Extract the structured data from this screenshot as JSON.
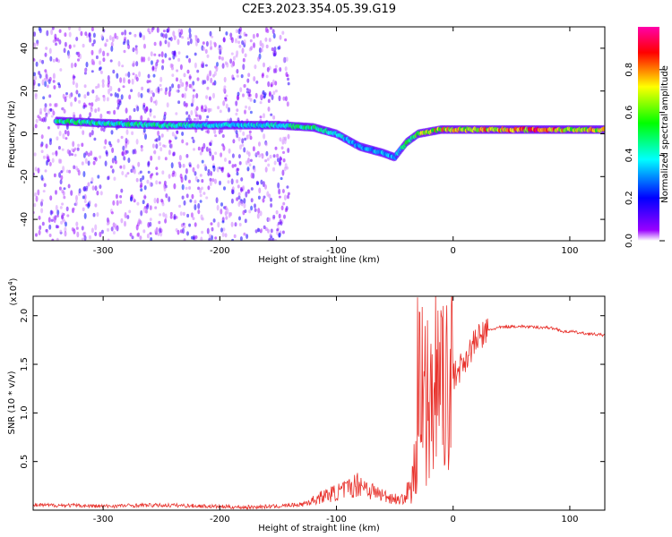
{
  "title": "C2E3.2023.354.05.39.G19",
  "chart_data": [
    {
      "type": "heatmap",
      "xlabel": "Height of straight line (km)",
      "ylabel": "Frequency (Hz)",
      "xlim": [
        -360,
        130
      ],
      "ylim": [
        -50,
        50
      ],
      "x_ticks": [
        -300,
        -200,
        -100,
        0,
        100
      ],
      "x_tick_labels": [
        "-300",
        "-200",
        "-100",
        "0",
        "100"
      ],
      "y_ticks": [
        -40,
        -20,
        0,
        20,
        40
      ],
      "y_tick_labels": [
        "-40",
        "-20",
        "0",
        "20",
        "40"
      ],
      "grid": false,
      "colorbar": {
        "label": "Normalized spectral amplitude",
        "range": [
          0,
          1
        ],
        "ticks": [
          0.0,
          0.2,
          0.4,
          0.6,
          0.8
        ],
        "tick_labels": [
          "0.0",
          "0.2",
          "0.4",
          "0.6",
          "0.8"
        ],
        "colormap": [
          "#ffffff",
          "#9900ff",
          "#0000ff",
          "#00ffff",
          "#00ff00",
          "#ffff00",
          "#ff0000",
          "#ff00aa"
        ]
      },
      "ridge": {
        "x": [
          -340,
          -300,
          -250,
          -200,
          -150,
          -120,
          -100,
          -80,
          -60,
          -50,
          -40,
          -30,
          -20,
          -10,
          0,
          20,
          50,
          80,
          100,
          130
        ],
        "y": [
          6,
          5,
          4,
          4,
          4,
          3,
          0,
          -6,
          -9,
          -11,
          -4,
          0,
          1,
          2,
          2,
          2,
          2,
          2,
          2,
          2
        ],
        "amplitude": [
          0.5,
          0.45,
          0.45,
          0.4,
          0.4,
          0.5,
          0.4,
          0.35,
          0.35,
          0.35,
          0.5,
          0.6,
          0.7,
          0.75,
          0.7,
          0.75,
          0.8,
          0.85,
          0.7,
          0.75
        ]
      },
      "noise_region": [
        -360,
        -140
      ]
    },
    {
      "type": "line",
      "xlabel": "Height of straight line (km)",
      "ylabel": "SNR (10 * v/v)",
      "y_multiplier": "(x10^4)",
      "xlim": [
        -360,
        130
      ],
      "ylim": [
        0,
        2.2
      ],
      "x_ticks": [
        -300,
        -200,
        -100,
        0,
        100
      ],
      "x_tick_labels": [
        "-300",
        "-200",
        "-100",
        "0",
        "100"
      ],
      "y_ticks": [
        0.5,
        1.0,
        1.5,
        2.0
      ],
      "y_tick_labels": [
        "0.5",
        "1.0",
        "1.5",
        "2.0"
      ],
      "grid": false,
      "series": [
        {
          "color": "#e8322c",
          "x": [
            -360,
            -330,
            -300,
            -270,
            -240,
            -210,
            -180,
            -150,
            -130,
            -120,
            -110,
            -100,
            -90,
            -80,
            -70,
            -60,
            -50,
            -45,
            -40,
            -35,
            -30,
            -25,
            -20,
            -15,
            -10,
            -5,
            0,
            5,
            10,
            15,
            20,
            25,
            30,
            40,
            50,
            60,
            70,
            80,
            90,
            95,
            100,
            110,
            120,
            130
          ],
          "y": [
            0.05,
            0.05,
            0.04,
            0.05,
            0.05,
            0.04,
            0.03,
            0.04,
            0.06,
            0.1,
            0.15,
            0.18,
            0.22,
            0.28,
            0.2,
            0.15,
            0.12,
            0.1,
            0.15,
            0.3,
            0.7,
            1.0,
            0.95,
            1.05,
            1.2,
            1.25,
            1.35,
            1.45,
            1.55,
            1.65,
            1.75,
            1.8,
            1.85,
            1.88,
            1.89,
            1.89,
            1.88,
            1.88,
            1.86,
            1.83,
            1.84,
            1.82,
            1.81,
            1.8
          ]
        }
      ]
    }
  ]
}
